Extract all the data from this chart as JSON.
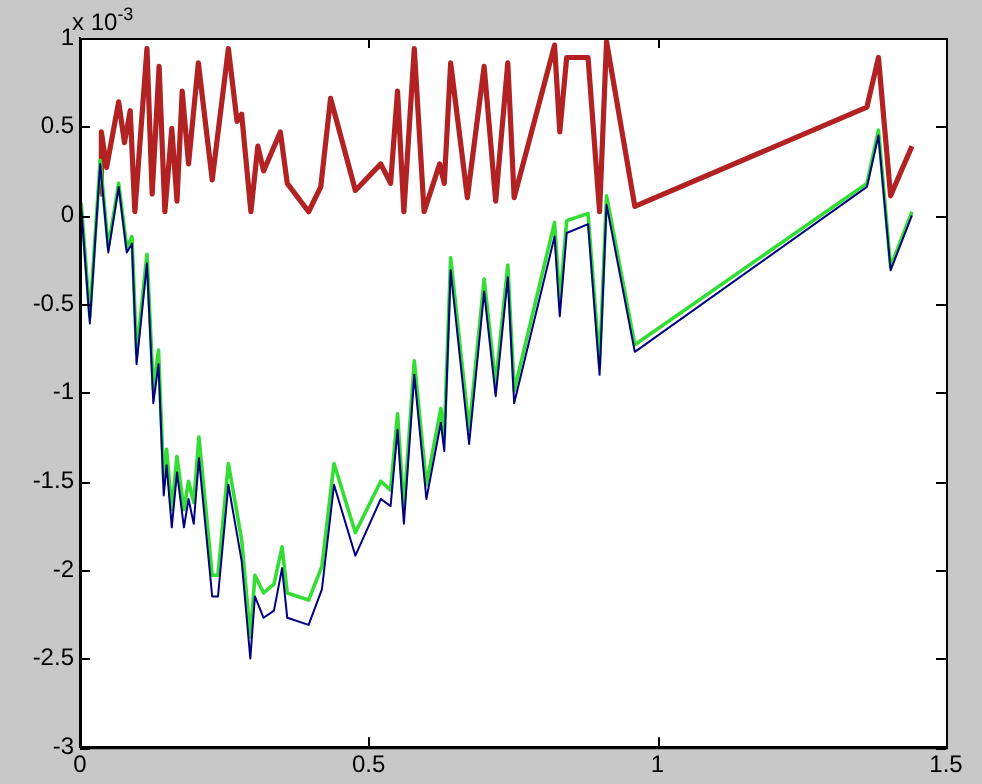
{
  "chart_data": {
    "type": "line",
    "annotations": [
      "x 10$^{-3}$"
    ],
    "xlim": [
      0,
      1.5
    ],
    "xticks": [
      0,
      0.5,
      1,
      1.5
    ],
    "ylim": [
      -3,
      1
    ],
    "yticks": [
      1,
      0.5,
      0,
      -0.5,
      -1,
      -1.5,
      -2,
      -2.5,
      -3
    ],
    "grid": false,
    "legend": false,
    "marker": "none",
    "line_style": "solid",
    "series": [
      {
        "color": "#b22222",
        "x": [
          0.035,
          0.037,
          0.046,
          0.067,
          0.077,
          0.087,
          0.095,
          0.116,
          0.125,
          0.137,
          0.147,
          0.159,
          0.168,
          0.177,
          0.188,
          0.205,
          0.229,
          0.257,
          0.272,
          0.28,
          0.296,
          0.308,
          0.318,
          0.347,
          0.359,
          0.396,
          0.417,
          0.434,
          0.477,
          0.521,
          0.538,
          0.55,
          0.561,
          0.579,
          0.596,
          0.623,
          0.631,
          0.642,
          0.671,
          0.7,
          0.72,
          0.741,
          0.752,
          0.822,
          0.831,
          0.843,
          0.88,
          0.9,
          0.912,
          0.961,
          1.363,
          1.383,
          1.404,
          1.441
        ],
        "values": [
          0.12,
          0.47,
          0.27,
          0.64,
          0.41,
          0.59,
          0.02,
          0.94,
          0.12,
          0.84,
          0.02,
          0.49,
          0.08,
          0.7,
          0.29,
          0.86,
          0.2,
          0.94,
          0.53,
          0.57,
          0.02,
          0.39,
          0.25,
          0.47,
          0.18,
          0.02,
          0.16,
          0.66,
          0.14,
          0.29,
          0.18,
          0.7,
          0.02,
          0.94,
          0.02,
          0.29,
          0.18,
          0.86,
          0.1,
          0.84,
          0.08,
          0.86,
          0.1,
          0.96,
          0.47,
          0.89,
          0.89,
          0.02,
          0.98,
          0.05,
          0.61,
          0.89,
          0.11,
          0.39
        ]
      },
      {
        "color": "#33dd33",
        "x": [
          0.002,
          0.017,
          0.035,
          0.049,
          0.067,
          0.081,
          0.09,
          0.098,
          0.116,
          0.127,
          0.136,
          0.145,
          0.15,
          0.159,
          0.168,
          0.18,
          0.188,
          0.197,
          0.206,
          0.229,
          0.239,
          0.257,
          0.272,
          0.28,
          0.295,
          0.303,
          0.318,
          0.336,
          0.35,
          0.359,
          0.396,
          0.419,
          0.44,
          0.477,
          0.521,
          0.538,
          0.55,
          0.561,
          0.579,
          0.6,
          0.625,
          0.631,
          0.642,
          0.674,
          0.7,
          0.72,
          0.741,
          0.752,
          0.822,
          0.831,
          0.843,
          0.88,
          0.9,
          0.912,
          0.961,
          1.363,
          1.383,
          1.404,
          1.441
        ],
        "values": [
          0.07,
          -0.57,
          0.31,
          -0.18,
          0.18,
          -0.18,
          -0.12,
          -0.78,
          -0.22,
          -0.98,
          -0.76,
          -1.5,
          -1.32,
          -1.66,
          -1.36,
          -1.66,
          -1.5,
          -1.62,
          -1.25,
          -2.03,
          -2.03,
          -1.4,
          -1.68,
          -1.83,
          -2.38,
          -2.03,
          -2.13,
          -2.08,
          -1.87,
          -2.13,
          -2.17,
          -1.98,
          -1.4,
          -1.79,
          -1.5,
          -1.55,
          -1.12,
          -1.66,
          -0.82,
          -1.52,
          -1.09,
          -1.25,
          -0.24,
          -1.21,
          -0.36,
          -0.95,
          -0.28,
          -0.99,
          -0.04,
          -0.49,
          -0.03,
          0.01,
          -0.84,
          0.11,
          -0.73,
          0.18,
          0.48,
          -0.29,
          0.02
        ]
      },
      {
        "color": "#000080",
        "x": [
          0.002,
          0.017,
          0.035,
          0.049,
          0.067,
          0.081,
          0.09,
          0.098,
          0.116,
          0.127,
          0.136,
          0.145,
          0.15,
          0.159,
          0.168,
          0.18,
          0.188,
          0.197,
          0.206,
          0.229,
          0.239,
          0.257,
          0.272,
          0.28,
          0.295,
          0.303,
          0.318,
          0.336,
          0.35,
          0.359,
          0.396,
          0.419,
          0.44,
          0.477,
          0.521,
          0.538,
          0.55,
          0.561,
          0.579,
          0.6,
          0.625,
          0.631,
          0.642,
          0.674,
          0.7,
          0.72,
          0.741,
          0.752,
          0.822,
          0.831,
          0.843,
          0.88,
          0.9,
          0.912,
          0.961,
          1.363,
          1.383,
          1.404,
          1.441
        ],
        "values": [
          0.05,
          -0.61,
          0.29,
          -0.21,
          0.16,
          -0.21,
          -0.16,
          -0.84,
          -0.27,
          -1.06,
          -0.84,
          -1.58,
          -1.41,
          -1.76,
          -1.45,
          -1.76,
          -1.6,
          -1.74,
          -1.37,
          -2.15,
          -2.15,
          -1.52,
          -1.8,
          -1.95,
          -2.5,
          -2.15,
          -2.27,
          -2.23,
          -1.99,
          -2.27,
          -2.31,
          -2.11,
          -1.52,
          -1.92,
          -1.6,
          -1.64,
          -1.21,
          -1.74,
          -0.9,
          -1.6,
          -1.17,
          -1.33,
          -0.31,
          -1.29,
          -0.43,
          -1.02,
          -0.35,
          -1.06,
          -0.12,
          -0.57,
          -0.1,
          -0.05,
          -0.9,
          0.06,
          -0.77,
          0.16,
          0.45,
          -0.31,
          0
        ]
      }
    ]
  }
}
